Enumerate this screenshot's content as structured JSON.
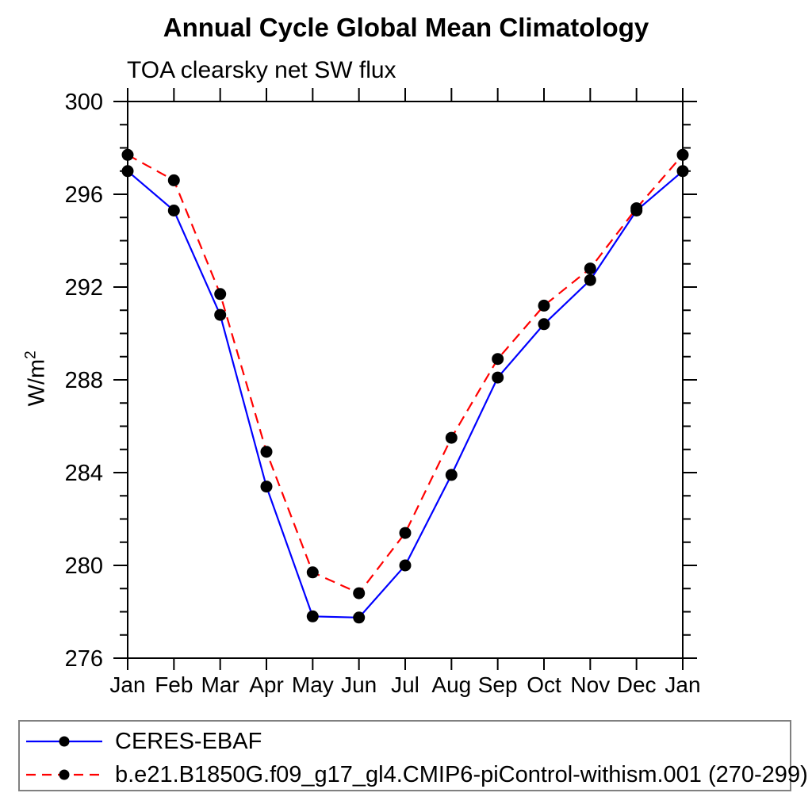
{
  "chart_data": {
    "type": "line",
    "title": "Annual Cycle Global Mean Climatology",
    "subtitle": "TOA clearsky net SW flux",
    "ylabel": "W/m²",
    "ylabel_base": "W/m",
    "ylabel_sup": "2",
    "xlabel": "",
    "categories": [
      "Jan",
      "Feb",
      "Mar",
      "Apr",
      "May",
      "Jun",
      "Jul",
      "Aug",
      "Sep",
      "Oct",
      "Nov",
      "Dec",
      "Jan"
    ],
    "ylim": [
      276,
      300
    ],
    "yticks_major": [
      276,
      280,
      284,
      288,
      292,
      296,
      300
    ],
    "ytick_minor_step": 1,
    "grid": false,
    "legend_position": "bottom-left",
    "series": [
      {
        "name": "CERES-EBAF",
        "color": "#0000ff",
        "line_style": "solid",
        "marker": "filled-circle",
        "marker_color": "#000000",
        "values": [
          297.0,
          295.3,
          290.8,
          283.4,
          277.8,
          277.75,
          280.0,
          283.9,
          288.1,
          290.4,
          292.3,
          295.3,
          297.0
        ]
      },
      {
        "name": "b.e21.B1850G.f09_g17_gl4.CMIP6-piControl-withism.001 (270-299)",
        "color": "#ff0000",
        "line_style": "dashed",
        "marker": "filled-circle",
        "marker_color": "#000000",
        "values": [
          297.7,
          296.6,
          291.7,
          284.9,
          279.7,
          278.8,
          281.4,
          285.5,
          288.9,
          291.2,
          292.8,
          295.4,
          297.7
        ]
      }
    ],
    "colors": {
      "axis": "#000000",
      "legend_border": "#808080",
      "background": "#ffffff",
      "text": "#000000"
    }
  }
}
